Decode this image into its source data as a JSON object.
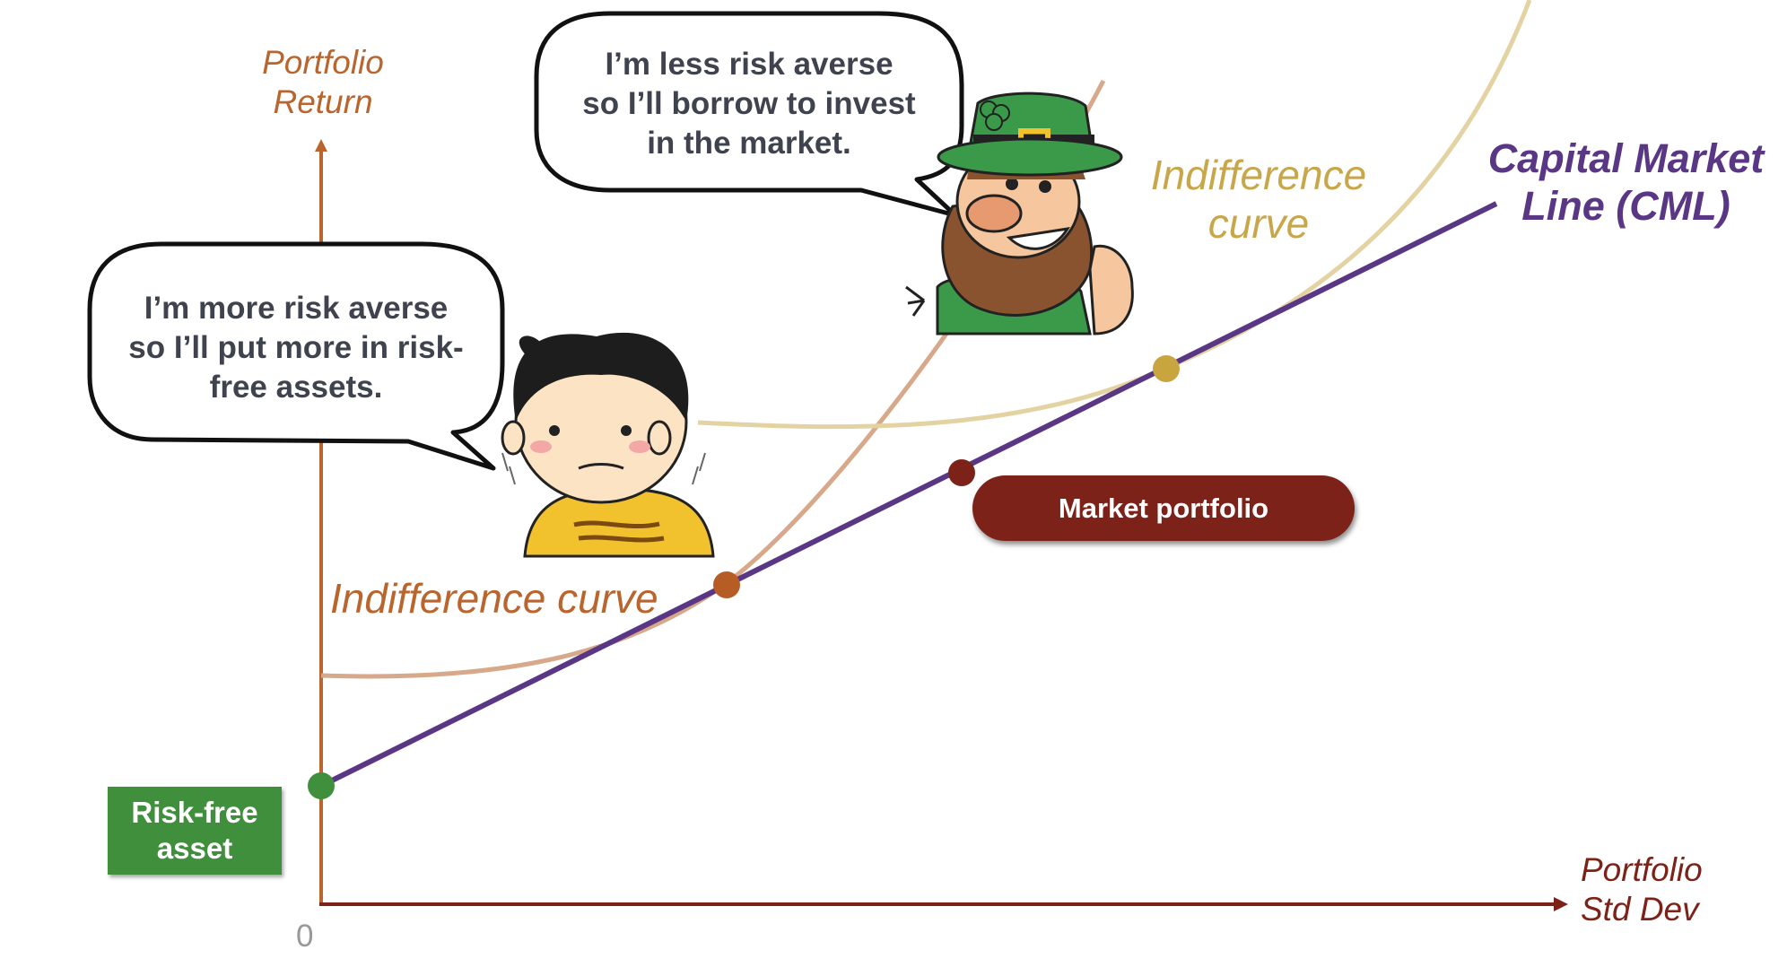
{
  "y_axis_title": "Portfolio\nReturn",
  "x_axis_title": "Portfolio\nStd Dev",
  "origin_label": "0",
  "cml_label": "Capital Market\nLine (CML)",
  "indifference_curve_left": "Indifference curve",
  "indifference_curve_right": "Indifference\ncurve",
  "market_portfolio_label": "Market portfolio",
  "risk_free_label": "Risk-free\nasset",
  "bubble_averse": {
    "lines": [
      "I’m more risk averse",
      "so I’ll put more in risk-",
      "free assets."
    ]
  },
  "bubble_less_averse": {
    "lines": [
      "I’m less risk averse",
      "so I’ll borrow to invest",
      "in the market."
    ]
  },
  "characters": {
    "averse_investor": "nervous-child-icon",
    "less_averse_investor": "leprechaun-icon"
  },
  "points": [
    {
      "name": "risk-free-asset-point",
      "color": "#3f8f3d"
    },
    {
      "name": "averse-tangency-point",
      "color": "#b55d25"
    },
    {
      "name": "market-portfolio-point",
      "color": "#7c2219"
    },
    {
      "name": "less-averse-tangency-point",
      "color": "#c9a540"
    }
  ],
  "colors": {
    "axis": "#b9652d",
    "x_axis": "#7c2219",
    "cml": "#5a3784",
    "curve_left": "#d7a889",
    "curve_right": "#e3d3a3",
    "curve_left_text": "#b9652d",
    "curve_right_text": "#c8a74b"
  }
}
